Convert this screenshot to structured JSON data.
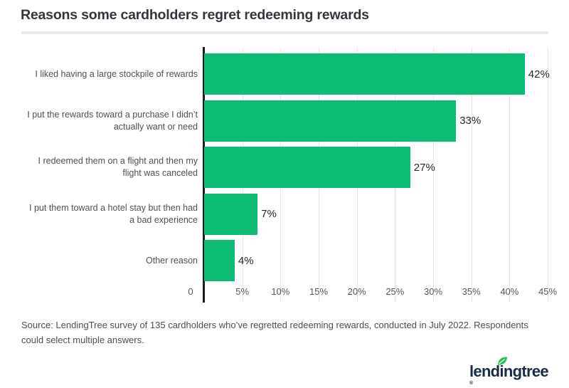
{
  "header": {
    "title": "Reasons some cardholders regret redeeming rewards"
  },
  "chart_data": {
    "type": "bar",
    "orientation": "horizontal",
    "title": "Reasons some cardholders regret redeeming rewards",
    "categories": [
      "I liked having a large stockpile of rewards",
      "I put the rewards toward a purchase I didn’t\nactually want or need",
      "I redeemed them on a flight and then my\nflight was canceled",
      "I put them toward a hotel stay but then had\na bad experience",
      "Other reason"
    ],
    "values": [
      42,
      33,
      27,
      7,
      4
    ],
    "value_labels": [
      "42%",
      "33%",
      "27%",
      "7%",
      "4%"
    ],
    "x_ticks": [
      "0",
      "5%",
      "10%",
      "15%",
      "20%",
      "25%",
      "30%",
      "35%",
      "40%",
      "45%"
    ],
    "xlim": [
      0,
      45
    ],
    "xlabel": "",
    "ylabel": "",
    "grid": "vertical",
    "legend": "none",
    "bar_color": "#0dbd75",
    "axis_color": "#1b1b1b",
    "gridline_color": "#e7e7e7"
  },
  "source": {
    "text": "Source: LendingTree survey of 135 cardholders who’ve regretted redeeming rewards, conducted in July 2022. Respondents could select multiple answers."
  },
  "logo": {
    "text": "lendingtree",
    "registered_mark": "®",
    "text_color": "#1a2b49",
    "leaf_color": "#2abf54"
  }
}
